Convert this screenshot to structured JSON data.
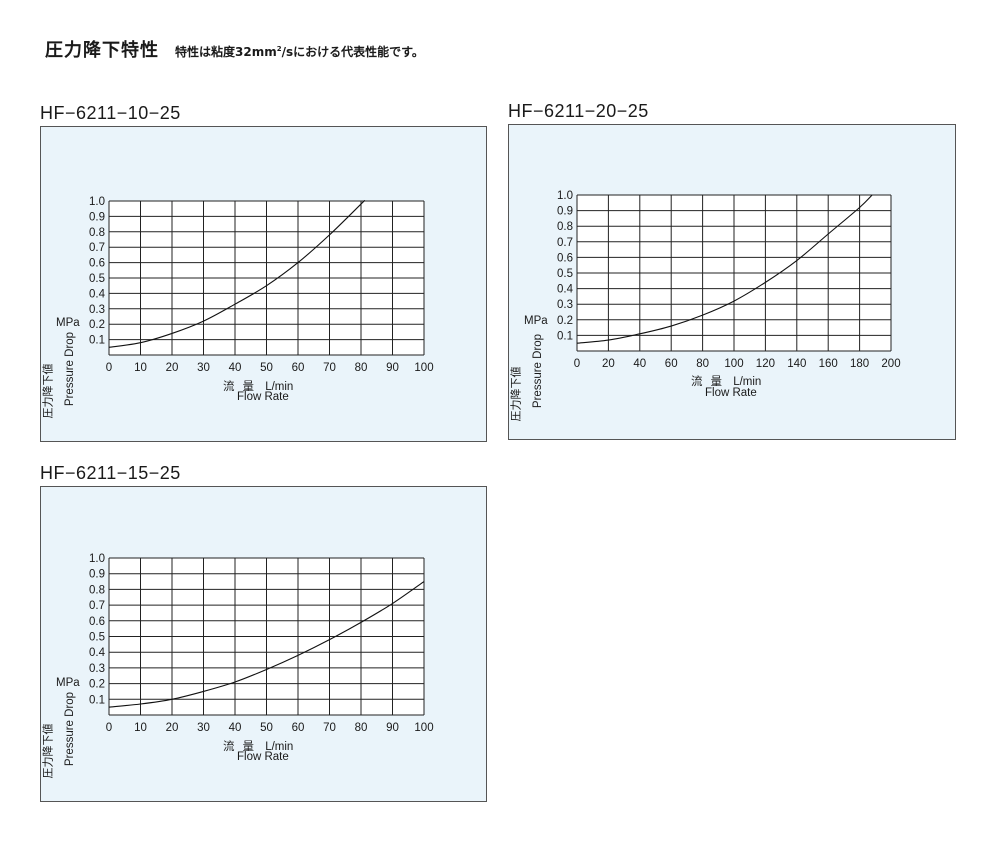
{
  "header": {
    "title": "圧力降下特性",
    "subtitle_pre": "特性は粘度32mm",
    "subtitle_sup": "2",
    "subtitle_post": "/sにおける代表性能です。"
  },
  "charts": [
    {
      "model": "HF−6211−10−25",
      "ylabel_ja": "圧力降下値",
      "ylabel_en": "Pressure Drop",
      "unit": "MPa",
      "xlabel_ja": "流量",
      "xlabel_unit": "L/min",
      "xlabel_en": "Flow Rate"
    },
    {
      "model": "HF−6211−20−25",
      "ylabel_ja": "圧力降下値",
      "ylabel_en": "Pressure Drop",
      "unit": "MPa",
      "xlabel_ja": "流量",
      "xlabel_unit": "L/min",
      "xlabel_en": "Flow Rate"
    },
    {
      "model": "HF−6211−15−25",
      "ylabel_ja": "圧力降下値",
      "ylabel_en": "Pressure Drop",
      "unit": "MPa",
      "xlabel_ja": "流量",
      "xlabel_unit": "L/min",
      "xlabel_en": "Flow Rate"
    }
  ],
  "chart_data": [
    {
      "type": "line",
      "title": "HF−6211−10−25",
      "xlabel": "流量 L/min Flow Rate",
      "ylabel": "圧力降下値 Pressure Drop MPa",
      "xlim": [
        0,
        100
      ],
      "ylim": [
        0,
        1.0
      ],
      "xticks": [
        0,
        10,
        20,
        30,
        40,
        50,
        60,
        70,
        80,
        90,
        100
      ],
      "yticks": [
        0.1,
        0.2,
        0.3,
        0.4,
        0.5,
        0.6,
        0.7,
        0.8,
        0.9,
        1.0
      ],
      "grid": true,
      "series": [
        {
          "x": [
            0,
            10,
            20,
            30,
            40,
            50,
            60,
            70,
            80,
            81
          ],
          "y": [
            0.05,
            0.08,
            0.14,
            0.22,
            0.33,
            0.45,
            0.6,
            0.78,
            0.98,
            1.0
          ]
        }
      ]
    },
    {
      "type": "line",
      "title": "HF−6211−20−25",
      "xlabel": "流量 L/min Flow Rate",
      "ylabel": "圧力降下値 Pressure Drop MPa",
      "xlim": [
        0,
        200
      ],
      "ylim": [
        0,
        1.0
      ],
      "xticks": [
        0,
        20,
        40,
        60,
        80,
        100,
        120,
        140,
        160,
        180,
        200
      ],
      "yticks": [
        0.1,
        0.2,
        0.3,
        0.4,
        0.5,
        0.6,
        0.7,
        0.8,
        0.9,
        1.0
      ],
      "grid": true,
      "series": [
        {
          "x": [
            0,
            20,
            40,
            60,
            80,
            100,
            120,
            140,
            160,
            180,
            188
          ],
          "y": [
            0.05,
            0.07,
            0.11,
            0.16,
            0.23,
            0.32,
            0.44,
            0.58,
            0.75,
            0.92,
            1.0
          ]
        }
      ]
    },
    {
      "type": "line",
      "title": "HF−6211−15−25",
      "xlabel": "流量 L/min Flow Rate",
      "ylabel": "圧力降下値 Pressure Drop MPa",
      "xlim": [
        0,
        100
      ],
      "ylim": [
        0,
        1.0
      ],
      "xticks": [
        0,
        10,
        20,
        30,
        40,
        50,
        60,
        70,
        80,
        90,
        100
      ],
      "yticks": [
        0.1,
        0.2,
        0.3,
        0.4,
        0.5,
        0.6,
        0.7,
        0.8,
        0.9,
        1.0
      ],
      "grid": true,
      "series": [
        {
          "x": [
            0,
            10,
            20,
            30,
            40,
            50,
            60,
            70,
            80,
            90,
            100
          ],
          "y": [
            0.05,
            0.07,
            0.1,
            0.15,
            0.21,
            0.29,
            0.38,
            0.48,
            0.59,
            0.71,
            0.85
          ]
        }
      ]
    }
  ]
}
